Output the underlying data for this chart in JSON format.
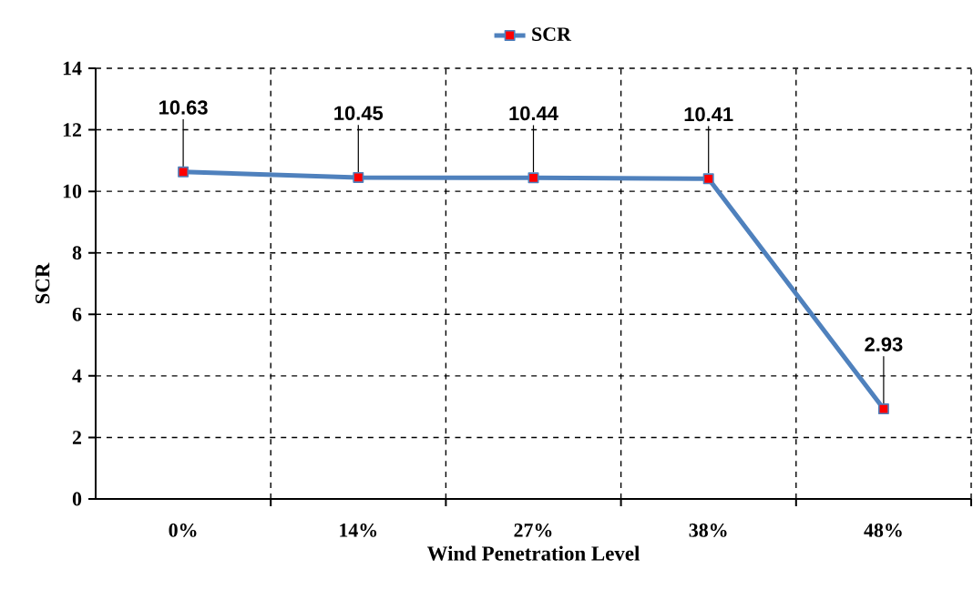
{
  "chart_data": {
    "type": "line",
    "xlabel": "Wind Penetration Level",
    "ylabel": "SCR",
    "categories": [
      "0%",
      "14%",
      "27%",
      "38%",
      "48%"
    ],
    "series": [
      {
        "name": "SCR",
        "color": "#4f81bd",
        "values": [
          10.63,
          10.45,
          10.44,
          10.41,
          2.93
        ],
        "value_labels": [
          "10.63",
          "10.45",
          "10.44",
          "10.41",
          "2.93"
        ]
      }
    ],
    "ylim": [
      0,
      14
    ],
    "yticks": [
      0,
      2,
      4,
      6,
      8,
      10,
      12,
      14
    ],
    "grid": true,
    "legend": "top",
    "marker": "square",
    "line_style": "solid"
  }
}
